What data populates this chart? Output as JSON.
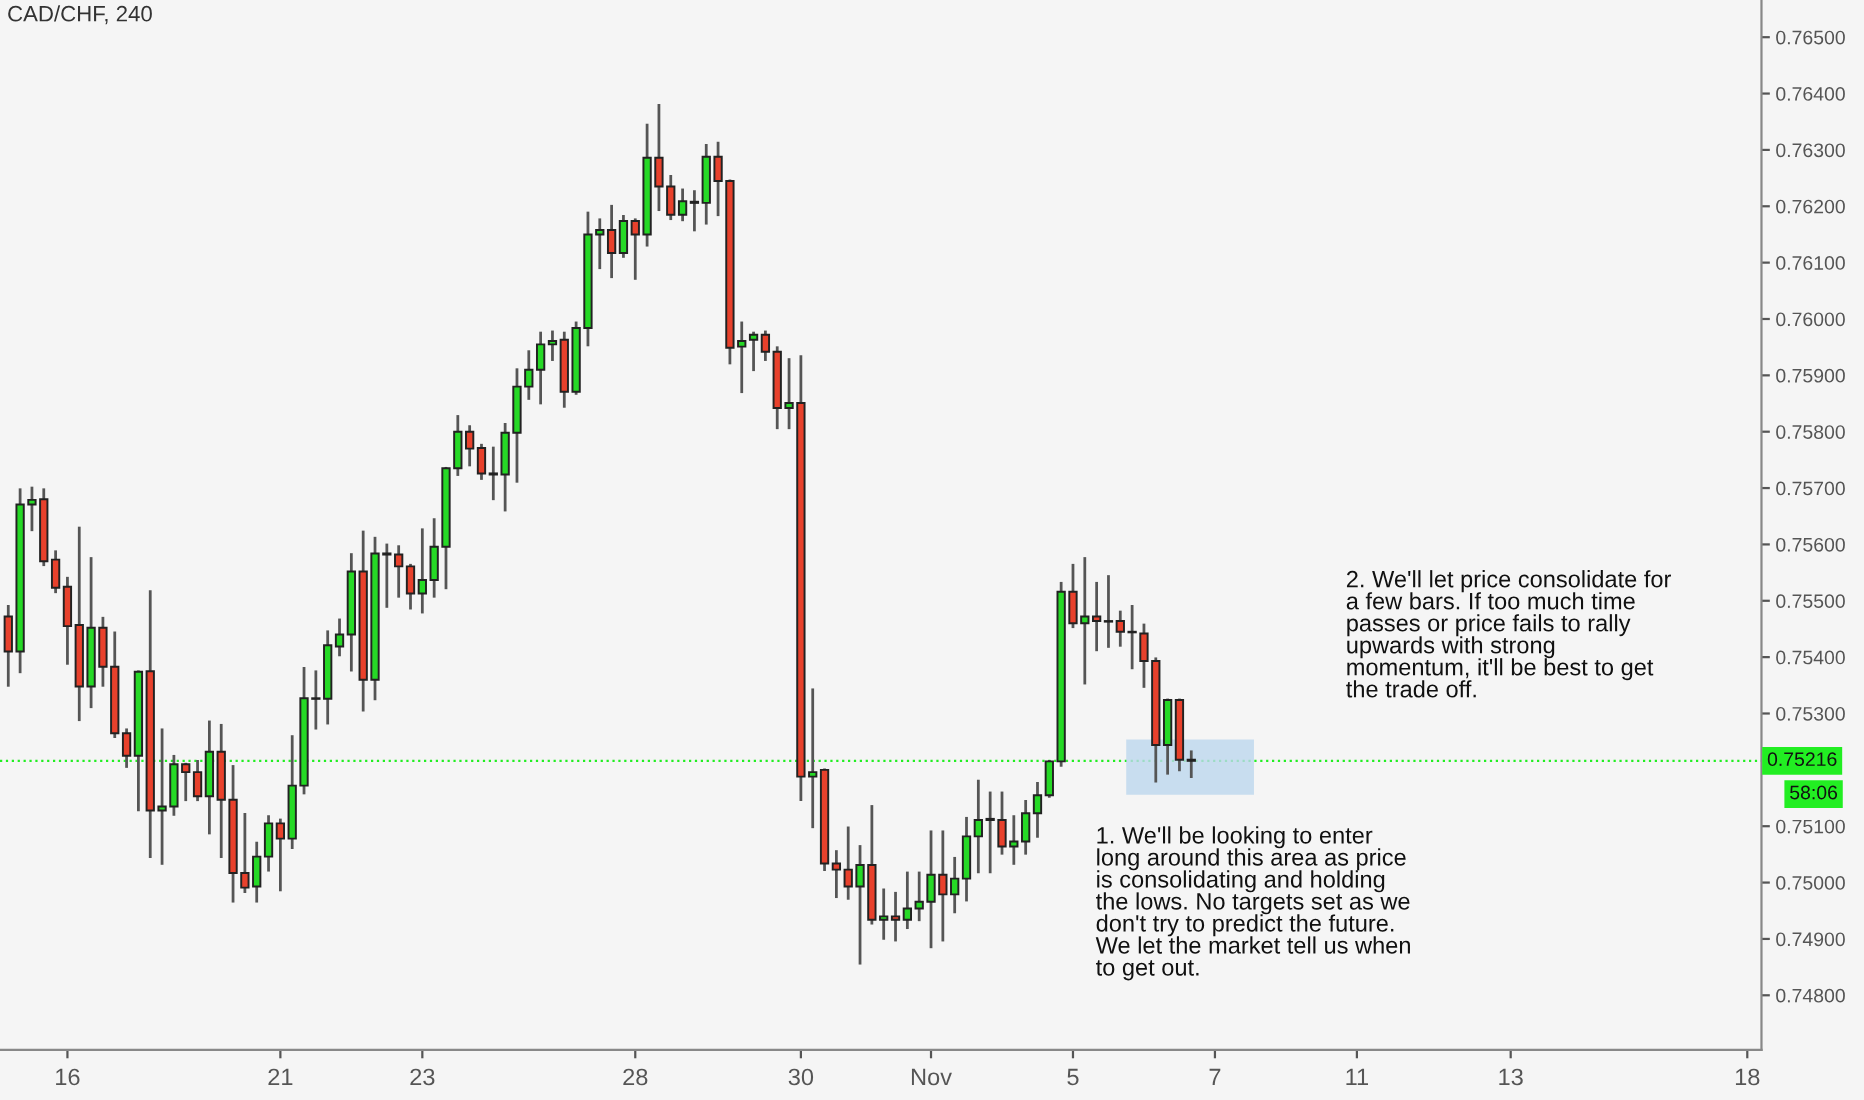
{
  "chart_data": {
    "type": "candlestick",
    "title": "CAD/CHF, 240",
    "categories": [
      null,
      null,
      null,
      null,
      null,
      "16",
      null,
      null,
      null,
      null,
      null,
      null,
      null,
      null,
      null,
      null,
      null,
      null,
      null,
      null,
      null,
      null,
      null,
      "21",
      null,
      null,
      null,
      null,
      null,
      null,
      null,
      null,
      null,
      null,
      null,
      "23",
      null,
      null,
      null,
      null,
      null,
      null,
      null,
      null,
      null,
      null,
      null,
      null,
      null,
      null,
      null,
      null,
      null,
      "28",
      null,
      null,
      null,
      null,
      null,
      null,
      null,
      null,
      null,
      null,
      null,
      null,
      null,
      "30",
      null,
      null,
      null,
      null,
      null,
      null,
      null,
      null,
      null,
      null,
      "Nov",
      null,
      null,
      null,
      null,
      null,
      null,
      null,
      null,
      null,
      null,
      null,
      "5",
      null,
      null,
      null,
      null,
      null,
      null,
      null,
      null,
      null,
      null,
      null,
      "7",
      null,
      null,
      null,
      null,
      null,
      null,
      null,
      null,
      null,
      null,
      null,
      "11",
      null,
      null,
      null,
      null,
      null,
      null,
      null,
      null,
      null,
      null,
      null,
      null,
      "13",
      null,
      null,
      null,
      null,
      null,
      null,
      null,
      null,
      null,
      null,
      null,
      null,
      null,
      null,
      null,
      null,
      null,
      null,
      null,
      "18",
      null
    ],
    "ohlc": [
      [
        0.75472,
        0.7549,
        0.7535,
        0.7541
      ],
      [
        0.7541,
        0.75697,
        0.75374,
        0.75671
      ],
      [
        0.75671,
        0.757,
        0.75626,
        0.75679
      ],
      [
        0.7568,
        0.75697,
        0.75564,
        0.7557
      ],
      [
        0.75573,
        0.75587,
        0.75516,
        0.75523
      ],
      [
        0.75525,
        0.7554,
        0.75389,
        0.75455
      ],
      [
        0.75457,
        0.75629,
        0.75289,
        0.75348
      ],
      [
        0.75348,
        0.75575,
        0.75312,
        0.75452
      ],
      [
        0.75452,
        0.75469,
        0.7535,
        0.75383
      ],
      [
        0.75383,
        0.75443,
        0.75259,
        0.75265
      ],
      [
        0.75265,
        0.75271,
        0.75206,
        0.75225
      ],
      [
        0.75225,
        0.75374,
        0.75129,
        0.75374
      ],
      [
        0.75375,
        0.75516,
        0.75046,
        0.75128
      ],
      [
        0.75128,
        0.75271,
        0.75034,
        0.75135
      ],
      [
        0.75135,
        0.75224,
        0.75121,
        0.7521
      ],
      [
        0.7521,
        0.7521,
        0.75147,
        0.75196
      ],
      [
        0.75196,
        0.75215,
        0.75147,
        0.75153
      ],
      [
        0.75153,
        0.75285,
        0.75088,
        0.75232
      ],
      [
        0.75232,
        0.75279,
        0.75046,
        0.75147
      ],
      [
        0.75147,
        0.75206,
        0.74967,
        0.75017
      ],
      [
        0.75017,
        0.75121,
        0.74984,
        0.74991
      ],
      [
        0.74993,
        0.7507,
        0.74967,
        0.75046
      ],
      [
        0.75046,
        0.75117,
        0.75022,
        0.75105
      ],
      [
        0.75105,
        0.75111,
        0.74987,
        0.75078
      ],
      [
        0.75078,
        0.75259,
        0.75062,
        0.75172
      ],
      [
        0.75172,
        0.7538,
        0.75159,
        0.75327
      ],
      [
        0.75326,
        0.75374,
        0.75274,
        0.75327
      ],
      [
        0.75326,
        0.75445,
        0.75283,
        0.75421
      ],
      [
        0.75419,
        0.75466,
        0.75404,
        0.7544
      ],
      [
        0.7544,
        0.75582,
        0.75377,
        0.75552
      ],
      [
        0.75552,
        0.75622,
        0.75306,
        0.7536
      ],
      [
        0.7536,
        0.75611,
        0.75326,
        0.75584
      ],
      [
        0.75582,
        0.75599,
        0.7549,
        0.75584
      ],
      [
        0.75582,
        0.75596,
        0.75508,
        0.75561
      ],
      [
        0.75561,
        0.75563,
        0.75487,
        0.75513
      ],
      [
        0.75513,
        0.75626,
        0.7548,
        0.75537
      ],
      [
        0.75537,
        0.75644,
        0.75508,
        0.75596
      ],
      [
        0.75596,
        0.75735,
        0.75523,
        0.75735
      ],
      [
        0.75735,
        0.75827,
        0.75724,
        0.758
      ],
      [
        0.758,
        0.75809,
        0.75741,
        0.7577
      ],
      [
        0.75771,
        0.75776,
        0.75717,
        0.75726
      ],
      [
        0.75726,
        0.75771,
        0.75681,
        0.75724
      ],
      [
        0.75724,
        0.75813,
        0.75661,
        0.75798
      ],
      [
        0.75798,
        0.7591,
        0.75712,
        0.7588
      ],
      [
        0.7588,
        0.75942,
        0.75859,
        0.7591
      ],
      [
        0.7591,
        0.75975,
        0.75851,
        0.75955
      ],
      [
        0.75955,
        0.75977,
        0.75928,
        0.75961
      ],
      [
        0.75963,
        0.75975,
        0.75845,
        0.75871
      ],
      [
        0.75871,
        0.75993,
        0.75868,
        0.75984
      ],
      [
        0.75984,
        0.76188,
        0.75954,
        0.7615
      ],
      [
        0.7615,
        0.76176,
        0.76091,
        0.76158
      ],
      [
        0.76158,
        0.762,
        0.76075,
        0.76117
      ],
      [
        0.76117,
        0.76182,
        0.76111,
        0.76174
      ],
      [
        0.76174,
        0.76176,
        0.76072,
        0.7615
      ],
      [
        0.7615,
        0.76344,
        0.76131,
        0.76286
      ],
      [
        0.76286,
        0.76379,
        0.76194,
        0.76235
      ],
      [
        0.76235,
        0.76253,
        0.76178,
        0.76185
      ],
      [
        0.76185,
        0.76229,
        0.76176,
        0.76209
      ],
      [
        0.76208,
        0.76226,
        0.76158,
        0.76206
      ],
      [
        0.76206,
        0.76308,
        0.7617,
        0.76288
      ],
      [
        0.76288,
        0.76312,
        0.76185,
        0.76245
      ],
      [
        0.76245,
        0.76245,
        0.75922,
        0.75949
      ],
      [
        0.75951,
        0.75993,
        0.75871,
        0.75961
      ],
      [
        0.75963,
        0.75975,
        0.7591,
        0.75972
      ],
      [
        0.75972,
        0.75977,
        0.75928,
        0.75942
      ],
      [
        0.75942,
        0.75949,
        0.75807,
        0.75842
      ],
      [
        0.75842,
        0.75928,
        0.75807,
        0.75851
      ],
      [
        0.75851,
        0.75933,
        0.75147,
        0.75188
      ],
      [
        0.75188,
        0.75342,
        0.75099,
        0.75196
      ],
      [
        0.752,
        0.752,
        0.75023,
        0.75034
      ],
      [
        0.75034,
        0.75055,
        0.74975,
        0.75023
      ],
      [
        0.75023,
        0.75097,
        0.74972,
        0.74993
      ],
      [
        0.74993,
        0.75064,
        0.74857,
        0.75031
      ],
      [
        0.75031,
        0.75135,
        0.74928,
        0.74934
      ],
      [
        0.74934,
        0.74987,
        0.74901,
        0.7494
      ],
      [
        0.7494,
        0.74981,
        0.74898,
        0.74934
      ],
      [
        0.74934,
        0.75017,
        0.7492,
        0.74954
      ],
      [
        0.74954,
        0.75017,
        0.74934,
        0.74966
      ],
      [
        0.74966,
        0.7509,
        0.74886,
        0.75014
      ],
      [
        0.75014,
        0.7509,
        0.74898,
        0.74979
      ],
      [
        0.74979,
        0.75043,
        0.74948,
        0.75007
      ],
      [
        0.75007,
        0.75114,
        0.74969,
        0.75082
      ],
      [
        0.75082,
        0.7518,
        0.75019,
        0.75111
      ],
      [
        0.75111,
        0.75159,
        0.75019,
        0.75113
      ],
      [
        0.75111,
        0.75159,
        0.75052,
        0.75064
      ],
      [
        0.75064,
        0.75117,
        0.75034,
        0.75073
      ],
      [
        0.75073,
        0.75144,
        0.75052,
        0.75123
      ],
      [
        0.75123,
        0.75176,
        0.75082,
        0.75155
      ],
      [
        0.75155,
        0.75215,
        0.75153,
        0.75215
      ],
      [
        0.75215,
        0.75531,
        0.75208,
        0.75516
      ],
      [
        0.75516,
        0.75563,
        0.75454,
        0.7546
      ],
      [
        0.7546,
        0.75575,
        0.75354,
        0.75472
      ],
      [
        0.75472,
        0.75531,
        0.75413,
        0.75464
      ],
      [
        0.75464,
        0.75543,
        0.75419,
        0.75463
      ],
      [
        0.75464,
        0.7548,
        0.75421,
        0.75445
      ],
      [
        0.75445,
        0.7549,
        0.75381,
        0.75444
      ],
      [
        0.75442,
        0.75457,
        0.75348,
        0.75393
      ],
      [
        0.75393,
        0.75397,
        0.7518,
        0.75244
      ],
      [
        0.75244,
        0.75324,
        0.75194,
        0.75324
      ],
      [
        0.75324,
        0.75324,
        0.752,
        0.75218
      ],
      [
        0.75218,
        0.75232,
        0.75188,
        0.75216
      ],
      null,
      null,
      null,
      null,
      null,
      null,
      null,
      null,
      null,
      null,
      null,
      null,
      null,
      null,
      null,
      null,
      null,
      null,
      null,
      null,
      null,
      null,
      null,
      null,
      null,
      null,
      null,
      null,
      null,
      null,
      null,
      null,
      null,
      null,
      null,
      null,
      null,
      null,
      null,
      null,
      null,
      null,
      null,
      null,
      null,
      null,
      null,
      null
    ],
    "colors": [
      "#e8412c",
      "#26d926",
      "#26d926",
      "#e8412c",
      "#e8412c",
      "#e8412c",
      "#e8412c",
      "#26d926",
      "#e8412c",
      "#e8412c",
      "#e8412c",
      "#26d926",
      "#e8412c",
      "#26d926",
      "#26d926",
      "#e8412c",
      "#e8412c",
      "#26d926",
      "#e8412c",
      "#e8412c",
      "#e8412c",
      "#26d926",
      "#26d926",
      "#e8412c",
      "#26d926",
      "#26d926",
      "#26d926",
      "#26d926",
      "#26d926",
      "#26d926",
      "#e8412c",
      "#26d926",
      "#26d926",
      "#e8412c",
      "#e8412c",
      "#26d926",
      "#26d926",
      "#26d926",
      "#26d926",
      "#e8412c",
      "#e8412c",
      "#e8412c",
      "#26d926",
      "#26d926",
      "#26d926",
      "#26d926",
      "#26d926",
      "#e8412c",
      "#26d926",
      "#26d926",
      "#26d926",
      "#e8412c",
      "#26d926",
      "#e8412c",
      "#26d926",
      "#e8412c",
      "#e8412c",
      "#26d926",
      "#e8412c",
      "#26d926",
      "#e8412c",
      "#e8412c",
      "#26d926",
      "#26d926",
      "#e8412c",
      "#e8412c",
      "#26d926",
      "#e8412c",
      "#26d926",
      "#e8412c",
      "#e8412c",
      "#e8412c",
      "#26d926",
      "#e8412c",
      "#26d926",
      "#e8412c",
      "#26d926",
      "#26d926",
      "#26d926",
      "#e8412c",
      "#26d926",
      "#26d926",
      "#26d926",
      "#26d926",
      "#e8412c",
      "#26d926",
      "#26d926",
      "#26d926",
      "#26d926",
      "#26d926",
      "#e8412c",
      "#26d926",
      "#e8412c",
      "#e8412c",
      "#e8412c",
      "#e8412c",
      "#e8412c",
      "#e8412c",
      "#26d926",
      "#e8412c",
      "#e8412c",
      null,
      null,
      null,
      null,
      null,
      null,
      null,
      null,
      null,
      null,
      null,
      null,
      null,
      null,
      null,
      null,
      null,
      null,
      null,
      null,
      null,
      null,
      null,
      null,
      null,
      null,
      null,
      null,
      null,
      null,
      null,
      null,
      null,
      null,
      null,
      null,
      null,
      null,
      null,
      null,
      null,
      null,
      null,
      null,
      null,
      null,
      null,
      null
    ],
    "ylim": [
      0.74703,
      0.76566
    ],
    "yticks": [
      {
        "value": 0.748,
        "label": "0.74800"
      },
      {
        "value": 0.749,
        "label": "0.74900"
      },
      {
        "value": 0.75,
        "label": "0.75000"
      },
      {
        "value": 0.751,
        "label": "0.75100"
      },
      {
        "value": 0.753,
        "label": "0.75300"
      },
      {
        "value": 0.754,
        "label": "0.75400"
      },
      {
        "value": 0.755,
        "label": "0.75500"
      },
      {
        "value": 0.756,
        "label": "0.75600"
      },
      {
        "value": 0.757,
        "label": "0.75700"
      },
      {
        "value": 0.758,
        "label": "0.75800"
      },
      {
        "value": 0.759,
        "label": "0.75900"
      },
      {
        "value": 0.76,
        "label": "0.76000"
      },
      {
        "value": 0.761,
        "label": "0.76100"
      },
      {
        "value": 0.762,
        "label": "0.76200"
      },
      {
        "value": 0.763,
        "label": "0.76300"
      },
      {
        "value": 0.764,
        "label": "0.76400"
      },
      {
        "value": 0.765,
        "label": "0.76500"
      }
    ],
    "ref_lines": [
      {
        "axis": "y",
        "value": 0.75216,
        "label": "0.75216",
        "color": "#22ee22",
        "line_style": "dotted"
      }
    ],
    "bands": [
      {
        "axis": "y",
        "from": 0.75156,
        "to": 0.75254,
        "color": "#bdd7ee"
      }
    ],
    "annotations": [
      "58:06",
      "1. We'll be looking to enter\nlong around this area as price\nis consolidating and holding\nthe lows. No targets set as we\ndon't try to predict the future.\nWe let the market tell us when\nto get out.",
      "2. We'll let price consolidate for\na few bars. If too much time\npasses or price fails to rally\nupwards with strong\nmomentum, it'll be best to get\nthe trade off."
    ],
    "grid": false
  }
}
